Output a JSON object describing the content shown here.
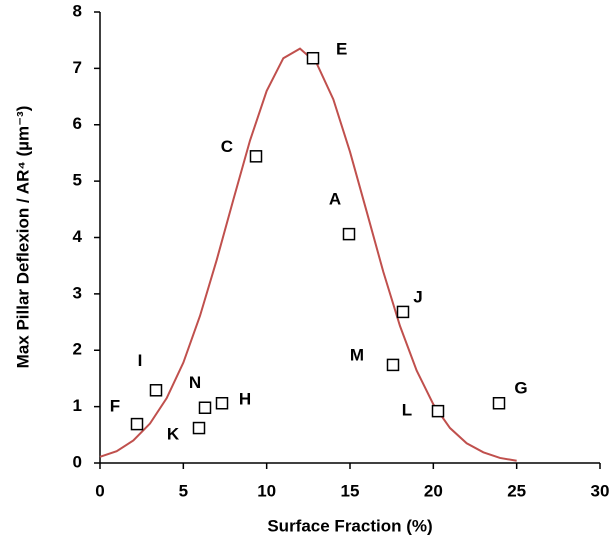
{
  "chart_data": {
    "type": "scatter",
    "xlabel": "Surface Fraction (%)",
    "ylabel": "Max Pillar Deflexion / AR⁴ (µm⁻³)",
    "xlim": [
      0,
      30
    ],
    "ylim": [
      0,
      8
    ],
    "xticks": [
      0,
      5,
      10,
      15,
      20,
      25,
      30
    ],
    "yticks": [
      0,
      1,
      2,
      3,
      4,
      5,
      6,
      7,
      8
    ],
    "series": [
      {
        "type": "scatter",
        "color": "#000000",
        "labels": [
          "E",
          "C",
          "A",
          "J",
          "M",
          "L",
          "G",
          "I",
          "F",
          "N",
          "K",
          "H"
        ],
        "x": [
          12.78,
          9.36,
          14.94,
          18.18,
          17.58,
          20.28,
          23.94,
          3.36,
          2.22,
          6.3,
          5.94,
          7.32
        ],
        "values": [
          7.18,
          5.44,
          4.06,
          2.68,
          1.74,
          0.92,
          1.06,
          1.29,
          0.69,
          0.98,
          0.62,
          1.06
        ]
      },
      {
        "type": "line",
        "color": "#c0504d",
        "x": [
          0,
          1,
          2,
          3,
          4,
          5,
          6,
          7,
          8,
          9,
          10,
          11,
          12,
          13,
          14,
          15,
          16,
          17,
          18,
          19,
          20,
          21,
          22,
          23,
          24,
          25
        ],
        "values": [
          0.11,
          0.21,
          0.4,
          0.7,
          1.15,
          1.78,
          2.61,
          3.6,
          4.67,
          5.72,
          6.6,
          7.18,
          7.35,
          7.09,
          6.45,
          5.52,
          4.46,
          3.39,
          2.43,
          1.64,
          1.04,
          0.62,
          0.35,
          0.19,
          0.09,
          0.04
        ]
      }
    ]
  }
}
